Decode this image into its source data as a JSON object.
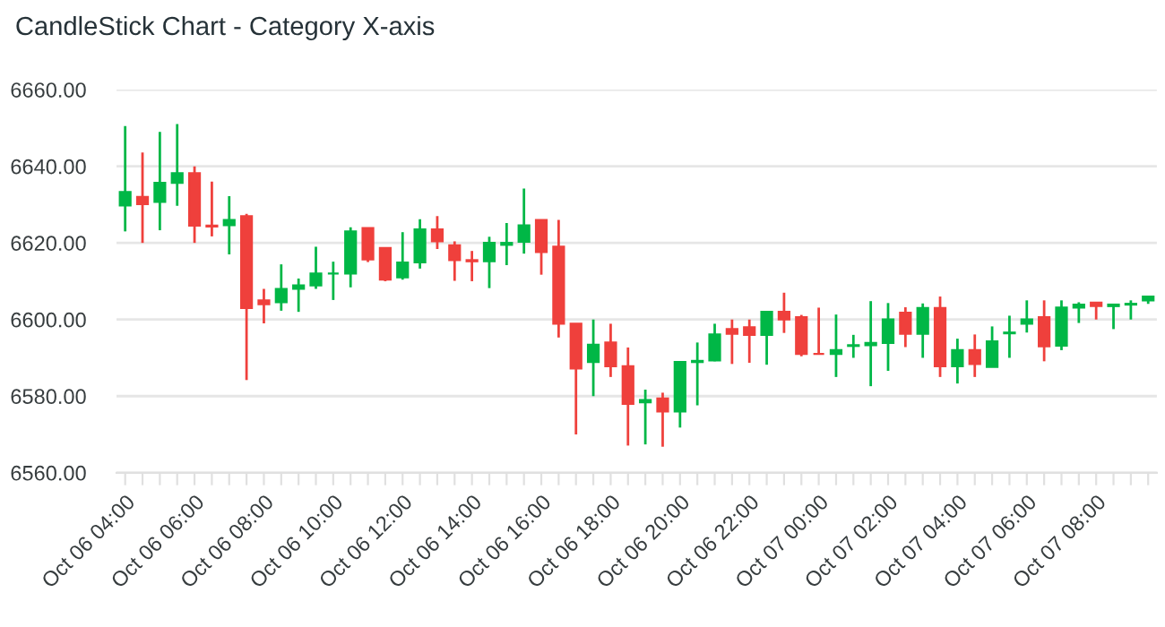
{
  "chart_data": {
    "type": "candlestick",
    "title": "CandleStick Chart - Category X-axis",
    "categories": [
      "Oct 06 04:00",
      null,
      null,
      null,
      "Oct 06 06:00",
      null,
      null,
      null,
      "Oct 06 08:00",
      null,
      null,
      null,
      "Oct 06 10:00",
      null,
      null,
      null,
      "Oct 06 12:00",
      null,
      null,
      null,
      "Oct 06 14:00",
      null,
      null,
      null,
      "Oct 06 16:00",
      null,
      null,
      null,
      "Oct 06 18:00",
      null,
      null,
      null,
      "Oct 06 20:00",
      null,
      null,
      null,
      "Oct 06 22:00",
      null,
      null,
      null,
      "Oct 07 00:00",
      null,
      null,
      null,
      "Oct 07 02:00",
      null,
      null,
      null,
      "Oct 07 04:00",
      null,
      null,
      null,
      "Oct 07 06:00",
      null,
      null,
      null,
      "Oct 07 08:00",
      null,
      null,
      null
    ],
    "ohlc": [
      [
        6629.8,
        6650.5,
        6623.0,
        6633.3
      ],
      [
        6632.0,
        6643.6,
        6620.0,
        6630.1
      ],
      [
        6630.7,
        6649.0,
        6623.3,
        6635.7
      ],
      [
        6635.7,
        6651.0,
        6629.7,
        6638.2
      ],
      [
        6638.2,
        6640.0,
        6620.0,
        6624.5
      ],
      [
        6624.5,
        6636.0,
        6621.7,
        6624.3
      ],
      [
        6624.6,
        6632.2,
        6617.0,
        6626.0
      ],
      [
        6627.0,
        6627.6,
        6584.2,
        6603.0
      ],
      [
        6605.0,
        6608.0,
        6599.0,
        6604.0
      ],
      [
        6604.5,
        6614.4,
        6602.3,
        6608.0
      ],
      [
        6608.0,
        6610.7,
        6602.0,
        6608.9
      ],
      [
        6608.9,
        6619.0,
        6608.0,
        6612.0
      ],
      [
        6612.0,
        6615.1,
        6605.1,
        6612.0
      ],
      [
        6612.0,
        6624.1,
        6608.4,
        6623.0
      ],
      [
        6623.9,
        6623.9,
        6615.0,
        6615.7
      ],
      [
        6618.7,
        6618.7,
        6610.0,
        6610.4
      ],
      [
        6611.0,
        6622.8,
        6610.4,
        6614.9
      ],
      [
        6614.9,
        6626.2,
        6613.3,
        6623.5
      ],
      [
        6623.5,
        6627.0,
        6618.4,
        6620.4
      ],
      [
        6619.4,
        6620.4,
        6610.1,
        6615.5
      ],
      [
        6615.5,
        6617.9,
        6610.0,
        6615.2
      ],
      [
        6615.2,
        6621.6,
        6608.2,
        6620.0
      ],
      [
        6619.5,
        6625.2,
        6614.2,
        6620.0
      ],
      [
        6620.3,
        6634.2,
        6617.2,
        6624.6
      ],
      [
        6626.0,
        6626.0,
        6611.7,
        6617.6
      ],
      [
        6619.0,
        6626.0,
        6595.3,
        6598.9
      ],
      [
        6598.9,
        6598.9,
        6570.0,
        6587.2
      ],
      [
        6588.9,
        6600.0,
        6580.0,
        6593.4
      ],
      [
        6594.0,
        6598.9,
        6585.0,
        6587.8
      ],
      [
        6587.8,
        6592.7,
        6567.1,
        6578.0
      ],
      [
        6578.4,
        6581.7,
        6567.4,
        6579.0
      ],
      [
        6579.4,
        6580.9,
        6566.8,
        6576.0
      ],
      [
        6576.0,
        6589.0,
        6571.8,
        6588.9
      ],
      [
        6588.9,
        6594.0,
        6577.6,
        6589.2
      ],
      [
        6589.3,
        6598.9,
        6589.1,
        6596.1
      ],
      [
        6597.5,
        6600.0,
        6588.4,
        6596.3
      ],
      [
        6598.0,
        6600.0,
        6588.7,
        6596.0
      ],
      [
        6596.0,
        6602.0,
        6588.2,
        6602.0
      ],
      [
        6602.0,
        6607.0,
        6596.5,
        6600.0
      ],
      [
        6600.6,
        6601.2,
        6590.4,
        6591.0
      ],
      [
        6591.0,
        6603.1,
        6591.0,
        6591.0
      ],
      [
        6591.0,
        6601.3,
        6585.0,
        6592.0
      ],
      [
        6593.1,
        6596.0,
        6590.0,
        6593.3
      ],
      [
        6593.3,
        6604.8,
        6582.6,
        6593.9
      ],
      [
        6593.9,
        6604.3,
        6586.6,
        6600.0
      ],
      [
        6601.8,
        6603.2,
        6592.8,
        6596.3
      ],
      [
        6596.3,
        6604.2,
        6590.0,
        6603.0
      ],
      [
        6603.0,
        6606.0,
        6585.0,
        6587.8
      ],
      [
        6587.8,
        6595.0,
        6583.3,
        6592.0
      ],
      [
        6592.0,
        6596.1,
        6585.0,
        6588.4
      ],
      [
        6587.6,
        6598.2,
        6587.6,
        6594.3
      ],
      [
        6596.4,
        6601.0,
        6590.0,
        6596.6
      ],
      [
        6598.9,
        6605.0,
        6596.6,
        6600.0
      ],
      [
        6600.6,
        6605.0,
        6589.1,
        6593.0
      ],
      [
        6593.2,
        6605.0,
        6592.0,
        6603.1
      ],
      [
        6603.1,
        6604.5,
        6599.1,
        6603.9
      ],
      [
        6604.4,
        6604.4,
        6600.0,
        6603.5
      ],
      [
        6603.5,
        6604.0,
        6597.5,
        6603.9
      ],
      [
        6603.9,
        6605.0,
        6600.0,
        6604.1
      ],
      [
        6605.0,
        6606.0,
        6604.1,
        6606.0
      ]
    ],
    "colors": [
      "#00b746",
      "#ef403c",
      "#00b746",
      "#00b746",
      "#ef403c",
      "#ef403c",
      "#00b746",
      "#ef403c",
      "#ef403c",
      "#00b746",
      "#00b746",
      "#00b746",
      "#00b746",
      "#00b746",
      "#ef403c",
      "#ef403c",
      "#00b746",
      "#00b746",
      "#ef403c",
      "#ef403c",
      "#ef403c",
      "#00b746",
      "#00b746",
      "#00b746",
      "#ef403c",
      "#ef403c",
      "#ef403c",
      "#00b746",
      "#ef403c",
      "#ef403c",
      "#00b746",
      "#ef403c",
      "#00b746",
      "#00b746",
      "#00b746",
      "#ef403c",
      "#ef403c",
      "#00b746",
      "#ef403c",
      "#ef403c",
      "#ef403c",
      "#00b746",
      "#00b746",
      "#00b746",
      "#00b746",
      "#ef403c",
      "#00b746",
      "#ef403c",
      "#00b746",
      "#ef403c",
      "#00b746",
      "#00b746",
      "#00b746",
      "#ef403c",
      "#00b746",
      "#00b746",
      "#ef403c",
      "#00b746",
      "#00b746",
      "#00b746"
    ],
    "ylim": [
      6560,
      6660
    ],
    "yticks": [
      {
        "value": 6560,
        "label": "6560.00"
      },
      {
        "value": 6580,
        "label": "6580.00"
      },
      {
        "value": 6600,
        "label": "6600.00"
      },
      {
        "value": 6620,
        "label": "6620.00"
      },
      {
        "value": 6640,
        "label": "6640.00"
      },
      {
        "value": 6660,
        "label": "6660.00"
      }
    ],
    "grid": "y"
  }
}
